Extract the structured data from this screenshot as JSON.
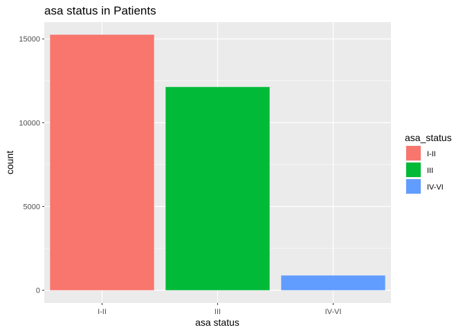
{
  "chart_data": {
    "type": "bar",
    "title": "asa status in Patients",
    "xlabel": "asa status",
    "ylabel": "count",
    "categories": [
      "I-II",
      "III",
      "IV-VI"
    ],
    "values": [
      15250,
      12130,
      880
    ],
    "colors": [
      "#F8766D",
      "#00BA38",
      "#619CFF"
    ],
    "ylim": [
      -760,
      16000
    ],
    "yticks": [
      0,
      5000,
      10000,
      15000
    ],
    "ytick_labels": [
      "0",
      "5000",
      "10000",
      "15000"
    ],
    "grid": true,
    "legend": {
      "title": "asa_status",
      "placement": "right",
      "entries": [
        "I-II",
        "III",
        "IV-VI"
      ]
    }
  }
}
